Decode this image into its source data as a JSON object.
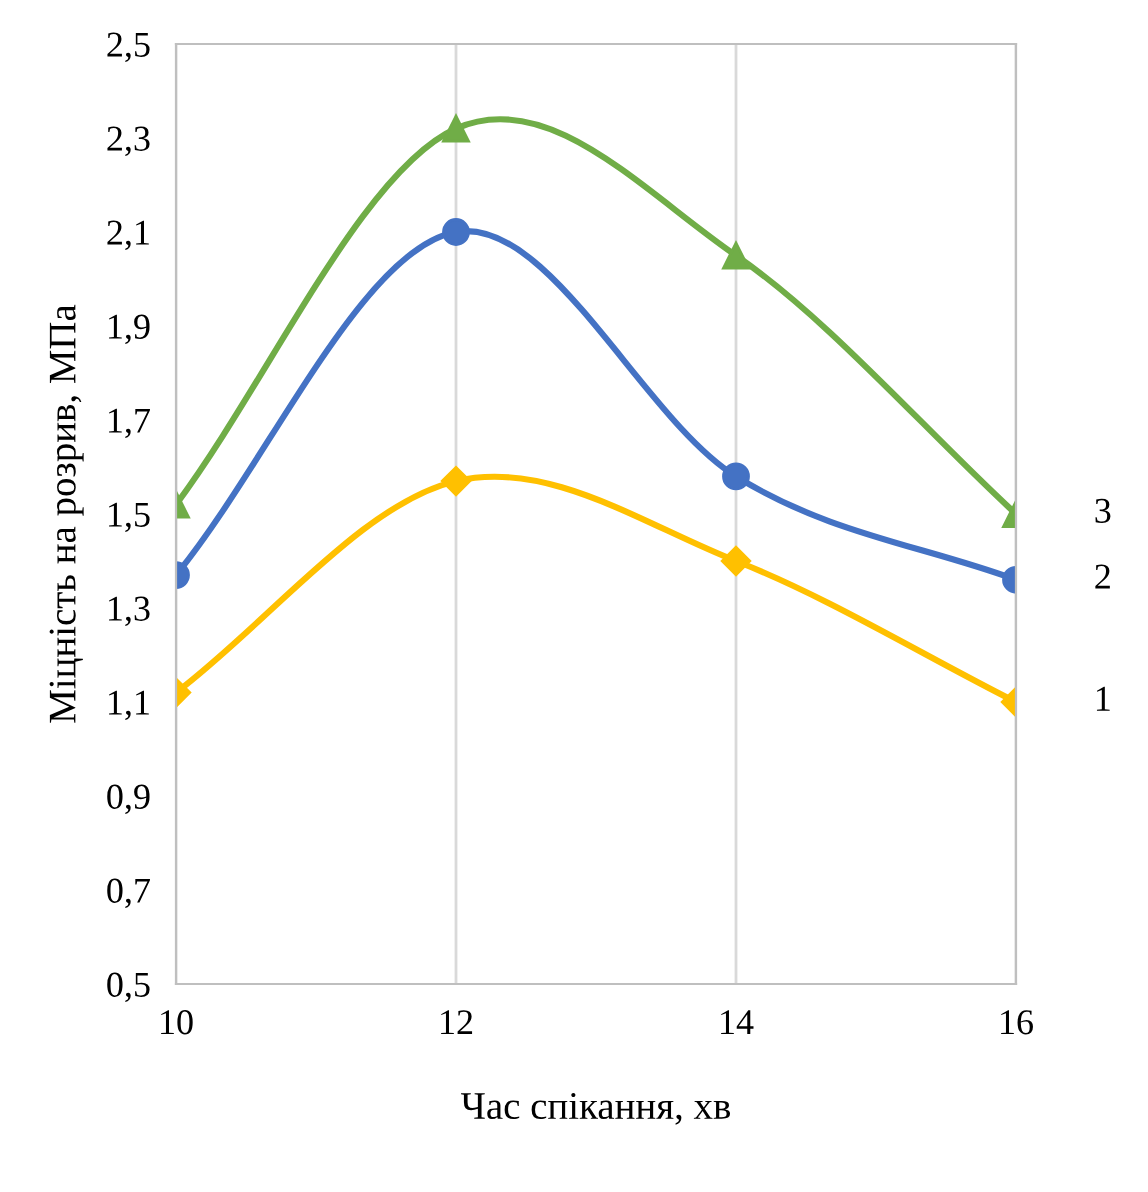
{
  "chart_data": {
    "type": "line",
    "xlabel": "Час спікання, хв",
    "ylabel": "Міцність на розрив, МПа",
    "x": [
      10,
      12,
      14,
      16
    ],
    "series": [
      {
        "name": "1",
        "color": "#ffc000",
        "marker": "diamond",
        "values": [
          1.12,
          1.57,
          1.4,
          1.1
        ]
      },
      {
        "name": "2",
        "color": "#4472c4",
        "marker": "circle",
        "values": [
          1.37,
          2.1,
          1.58,
          1.36
        ]
      },
      {
        "name": "3",
        "color": "#70ad47",
        "marker": "triangle",
        "values": [
          1.52,
          2.32,
          2.05,
          1.5
        ]
      }
    ],
    "xlim": [
      10,
      16
    ],
    "xticks": [
      10,
      12,
      14,
      16
    ],
    "ylim": [
      0.5,
      2.5
    ],
    "yticks": [
      {
        "value": 0.5,
        "label": "0,5"
      },
      {
        "value": 0.7,
        "label": "0,7"
      },
      {
        "value": 0.9,
        "label": "0,9"
      },
      {
        "value": 1.1,
        "label": "1,1"
      },
      {
        "value": 1.3,
        "label": "1,3"
      },
      {
        "value": 1.5,
        "label": "1,5"
      },
      {
        "value": 1.7,
        "label": "1,7"
      },
      {
        "value": 1.9,
        "label": "1,9"
      },
      {
        "value": 2.1,
        "label": "2,1"
      },
      {
        "value": 2.3,
        "label": "2,3"
      },
      {
        "value": 2.5,
        "label": "2,5"
      }
    ],
    "grid": "x",
    "legend": false,
    "line_style": "solid"
  }
}
